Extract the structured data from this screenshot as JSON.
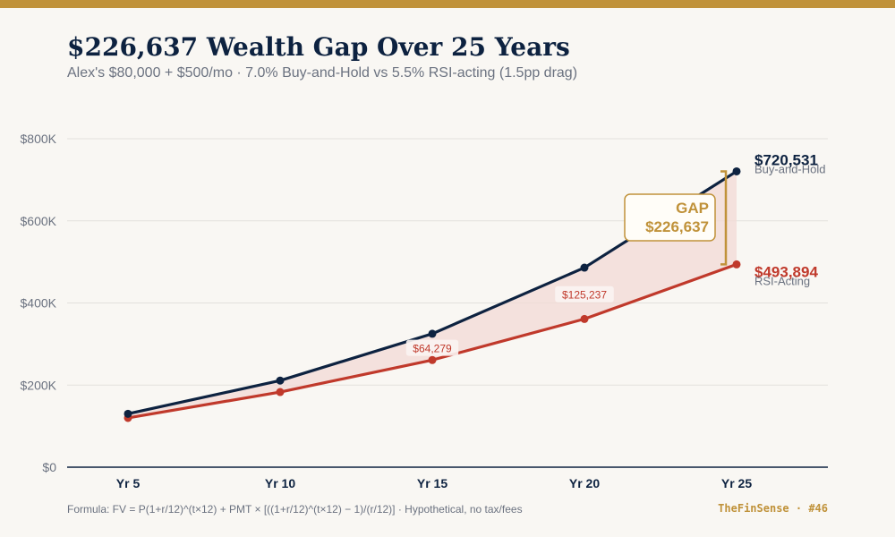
{
  "header": {
    "title": "$226,637 Wealth Gap Over 25 Years",
    "subtitle": "Alex's $80,000 + $500/mo · 7.0% Buy-and-Hold vs 5.5% RSI-acting (1.5pp drag)"
  },
  "colors": {
    "accent": "#c0923a",
    "navy": "#0d2240",
    "red": "#c0392b",
    "gap_fill": "#f2d9d6",
    "grid": "#e3e1dc"
  },
  "chart_data": {
    "type": "line",
    "categories": [
      "Yr 5",
      "Yr 10",
      "Yr 15",
      "Yr 20",
      "Yr 25"
    ],
    "ylim": [
      0,
      800000
    ],
    "y_ticks": [
      0,
      200000,
      400000,
      600000,
      800000
    ],
    "y_tick_labels": [
      "$0",
      "$200K",
      "$400K",
      "$600K",
      "$800K"
    ],
    "grid": true,
    "series": [
      {
        "name": "Buy-and-Hold",
        "color": "#0d2240",
        "values": [
          130000,
          211000,
          325000,
          486000,
          720531
        ],
        "end_label": "$720,531"
      },
      {
        "name": "RSI-Acting",
        "color": "#c0392b",
        "values": [
          120000,
          183000,
          261000,
          361000,
          493894
        ],
        "end_label": "$493,894"
      }
    ],
    "annotations": [
      {
        "category": "Yr 15",
        "text": "$64,279"
      },
      {
        "category": "Yr 20",
        "text": "$125,237"
      }
    ],
    "gap_callout": {
      "title": "GAP",
      "value": "$226,637"
    }
  },
  "footer": {
    "formula": "Formula: FV = P(1+r/12)^(t×12) + PMT × [((1+r/12)^(t×12) − 1)/(r/12)] · Hypothetical, no tax/fees",
    "brand": "TheFinSense · #46"
  }
}
